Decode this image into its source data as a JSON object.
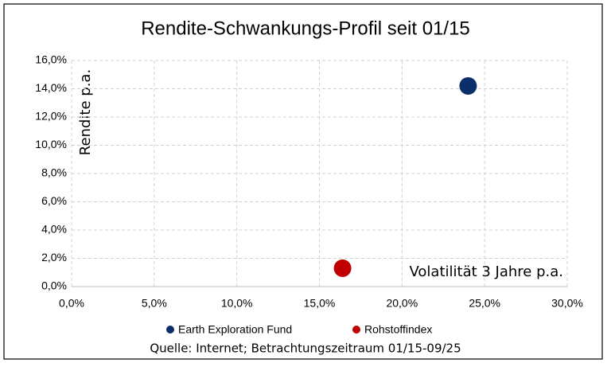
{
  "chart_data": {
    "type": "scatter",
    "title": "Rendite-Schwankungs-Profil  seit 01/15",
    "x_label": "Volatilität 3 Jahre p.a.",
    "y_label": "Rendite p.a.",
    "source": "Quelle: Internet; Betrachtungszeitraum 01/15-09/25",
    "series": [
      {
        "name": "Earth Exploration Fund",
        "color": "#0b2f6b",
        "x": [
          24.0
        ],
        "values": [
          14.2
        ]
      },
      {
        "name": "Rohstoffindex",
        "color": "#c00000",
        "x": [
          16.4
        ],
        "values": [
          1.3
        ]
      }
    ],
    "xlim": [
      0,
      30
    ],
    "xticks": [
      {
        "value": 0,
        "label": "0,0%"
      },
      {
        "value": 5,
        "label": "5,0%"
      },
      {
        "value": 10,
        "label": "10,0%"
      },
      {
        "value": 15,
        "label": "15,0%"
      },
      {
        "value": 20,
        "label": "20,0%"
      },
      {
        "value": 25,
        "label": "25,0%"
      },
      {
        "value": 30,
        "label": "30,0%"
      }
    ],
    "ylim": [
      0,
      16
    ],
    "yticks": [
      {
        "value": 0,
        "label": "0,0%"
      },
      {
        "value": 2,
        "label": "2,0%"
      },
      {
        "value": 4,
        "label": "4,0%"
      },
      {
        "value": 6,
        "label": "6,0%"
      },
      {
        "value": 8,
        "label": "8,0%"
      },
      {
        "value": 10,
        "label": "10,0%"
      },
      {
        "value": 12,
        "label": "12,0%"
      },
      {
        "value": 14,
        "label": "14,0%"
      },
      {
        "value": 16,
        "label": "16,0%"
      }
    ],
    "grid": true
  }
}
